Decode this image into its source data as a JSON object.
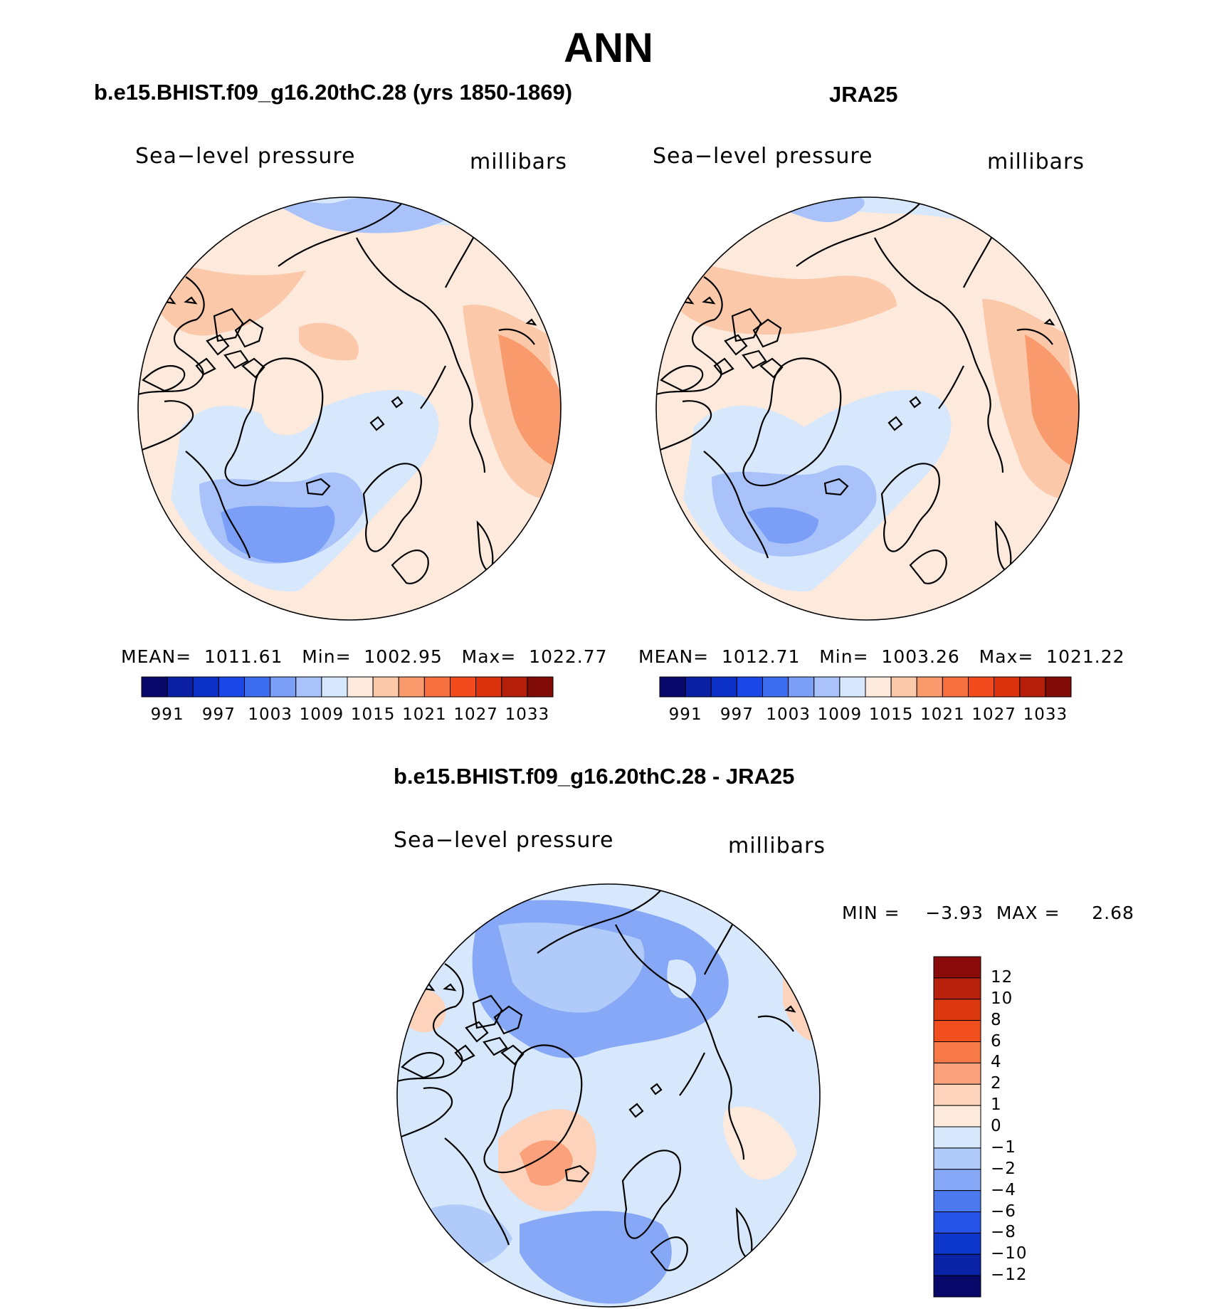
{
  "title": "ANN",
  "panels": {
    "model": {
      "title": "b.e15.BHIST.f09_g16.20thC.28 (yrs 1850-1869)",
      "variable": "Sea−level pressure",
      "units": "millibars",
      "stats": "MEAN=  1011.61   Min=  1002.95   Max=  1022.77"
    },
    "obs": {
      "title": "JRA25",
      "variable": "Sea−level pressure",
      "units": "millibars",
      "stats": "MEAN=  1012.71   Min=  1003.26   Max=  1021.22"
    },
    "diff": {
      "title": "b.e15.BHIST.f09_g16.20thC.28 - JRA25",
      "variable": "Sea−level pressure",
      "units": "millibars",
      "stats": "MIN =    −3.93  MAX =     2.68"
    }
  },
  "colorbar_abs": {
    "labels": [
      "991",
      "997",
      "1003",
      "1009",
      "1015",
      "1021",
      "1027",
      "1033"
    ],
    "colors": [
      "#08086b",
      "#0a1fa3",
      "#0c31c9",
      "#1a48e8",
      "#3d6ef0",
      "#7b9ff6",
      "#a9c3fa",
      "#d7e8fc",
      "#fdeadc",
      "#fcc8aa",
      "#f99a6c",
      "#f6703f",
      "#f24a1d",
      "#dc330e",
      "#b51e0a",
      "#7f0a06"
    ]
  },
  "colorbar_diff": {
    "labels": [
      "12",
      "10",
      "8",
      "6",
      "4",
      "2",
      "1",
      "0",
      "−1",
      "−2",
      "−4",
      "−6",
      "−8",
      "−10",
      "−12"
    ],
    "colors": [
      "#8b0a0a",
      "#b8220c",
      "#dc3810",
      "#f24f1e",
      "#f77a48",
      "#fba27c",
      "#fdd3bb",
      "#fdeadc",
      "#d7e8fc",
      "#b0cafa",
      "#86a8f6",
      "#4d79ef",
      "#2553e8",
      "#0c36cc",
      "#0a22a5",
      "#08086b"
    ]
  },
  "chart_data": [
    {
      "type": "heatmap",
      "projection": "north-polar-stereographic",
      "title": "b.e15.BHIST.f09_g16.20thC.28 (yrs 1850-1869)",
      "variable": "Sea-level pressure",
      "units": "millibars",
      "mean": 1011.61,
      "min": 1002.95,
      "max": 1022.77,
      "contour_levels": [
        991,
        994,
        997,
        1000,
        1003,
        1006,
        1009,
        1012,
        1015,
        1018,
        1021,
        1024,
        1027,
        1030,
        1033
      ]
    },
    {
      "type": "heatmap",
      "projection": "north-polar-stereographic",
      "title": "JRA25",
      "variable": "Sea-level pressure",
      "units": "millibars",
      "mean": 1012.71,
      "min": 1003.26,
      "max": 1021.22,
      "contour_levels": [
        991,
        994,
        997,
        1000,
        1003,
        1006,
        1009,
        1012,
        1015,
        1018,
        1021,
        1024,
        1027,
        1030,
        1033
      ]
    },
    {
      "type": "heatmap",
      "projection": "north-polar-stereographic",
      "title": "b.e15.BHIST.f09_g16.20thC.28 - JRA25",
      "variable": "Sea-level pressure",
      "units": "millibars",
      "min": -3.93,
      "max": 2.68,
      "contour_levels": [
        -12,
        -10,
        -8,
        -6,
        -4,
        -2,
        -1,
        0,
        1,
        2,
        4,
        6,
        8,
        10,
        12
      ]
    }
  ]
}
